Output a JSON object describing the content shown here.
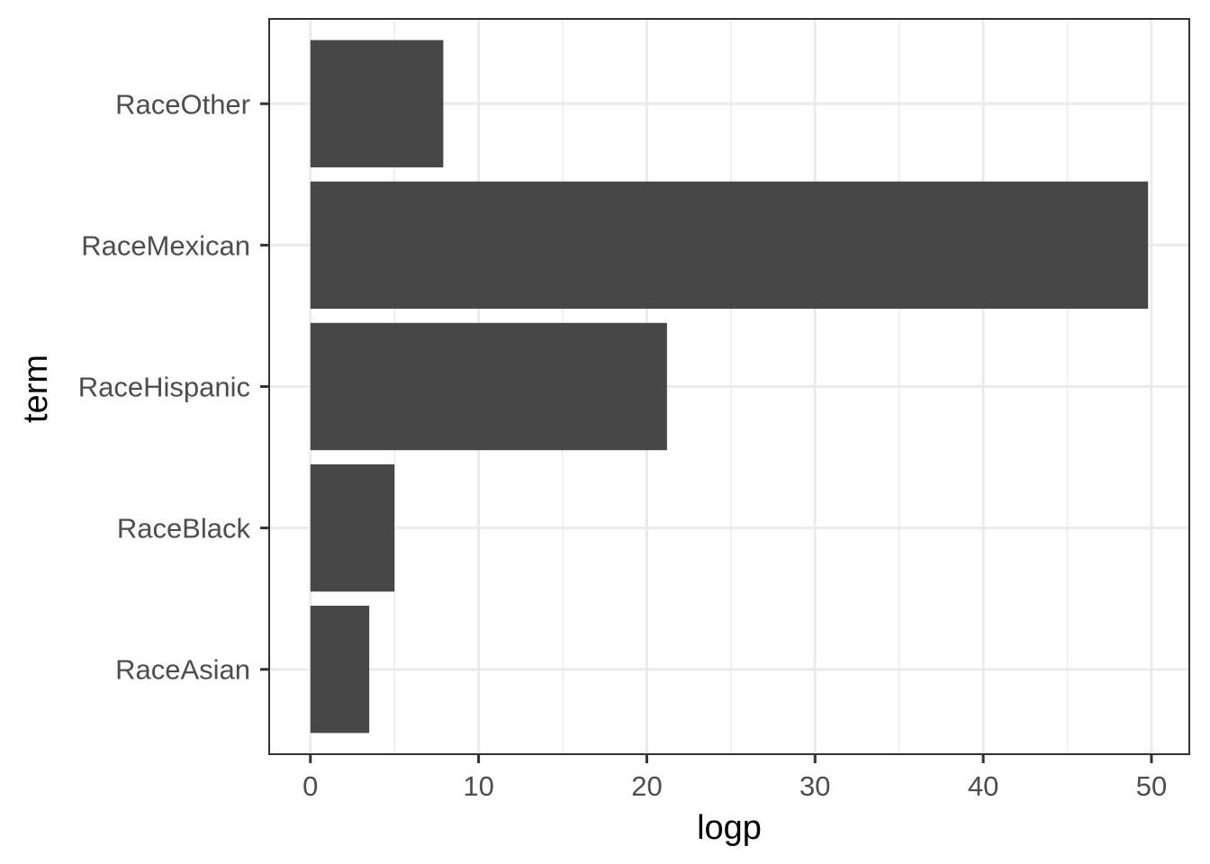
{
  "chart_data": {
    "type": "bar",
    "orientation": "horizontal",
    "title": "",
    "xlabel": "logp",
    "ylabel": "term",
    "categories": [
      "RaceAsian",
      "RaceBlack",
      "RaceHispanic",
      "RaceMexican",
      "RaceOther"
    ],
    "values": [
      3.5,
      5.0,
      21.2,
      49.8,
      7.9
    ],
    "xlim": [
      -2.45,
      52.25
    ],
    "xticks": [
      0,
      10,
      20,
      30,
      40,
      50
    ],
    "xtick_labels": [
      "0",
      "10",
      "20",
      "30",
      "40",
      "50"
    ],
    "grid": true,
    "legend": "none"
  },
  "colors": {
    "bar": "#474747",
    "grid": "#ebebeb",
    "panel_border": "#333333",
    "tick_text": "#4d4d4d",
    "axis_title": "#000000"
  }
}
